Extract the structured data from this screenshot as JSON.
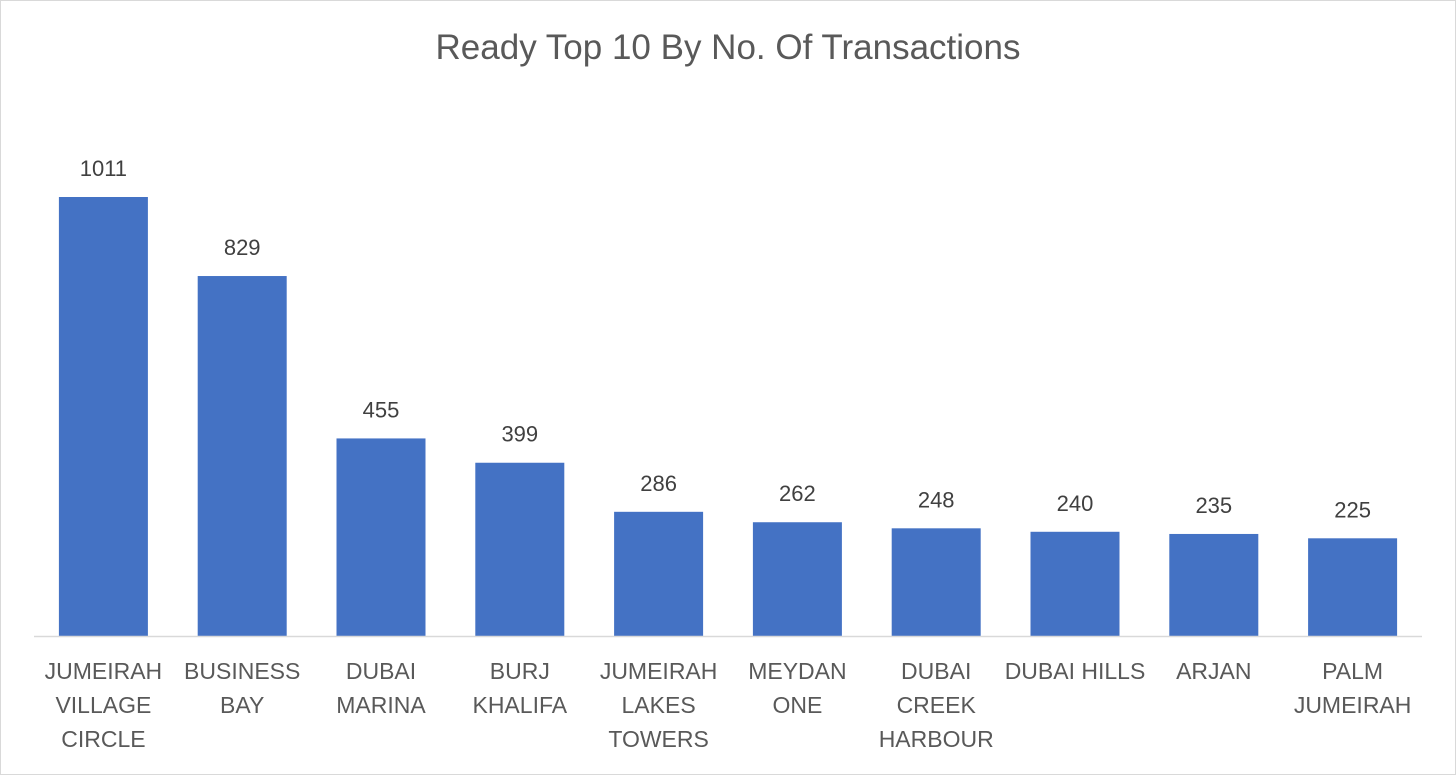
{
  "chart_data": {
    "type": "bar",
    "title": "Ready Top 10 By No. Of Transactions",
    "xlabel": "",
    "ylabel": "",
    "categories": [
      [
        "JUMEIRAH",
        "VILLAGE",
        "CIRCLE"
      ],
      [
        "BUSINESS",
        "BAY"
      ],
      [
        "DUBAI",
        "MARINA"
      ],
      [
        "BURJ",
        "KHALIFA"
      ],
      [
        "JUMEIRAH",
        "LAKES",
        "TOWERS"
      ],
      [
        "MEYDAN",
        "ONE"
      ],
      [
        "DUBAI",
        "CREEK",
        "HARBOUR"
      ],
      [
        "DUBAI HILLS"
      ],
      [
        "ARJAN"
      ],
      [
        "PALM",
        "JUMEIRAH"
      ]
    ],
    "values": [
      1011,
      829,
      455,
      399,
      286,
      262,
      248,
      240,
      235,
      225
    ],
    "ylim": [
      0,
      1200
    ],
    "grid": false,
    "legend": "none",
    "data_labels": true,
    "bar_color": "#4472C4",
    "axis_color": "#d9d9d9"
  }
}
